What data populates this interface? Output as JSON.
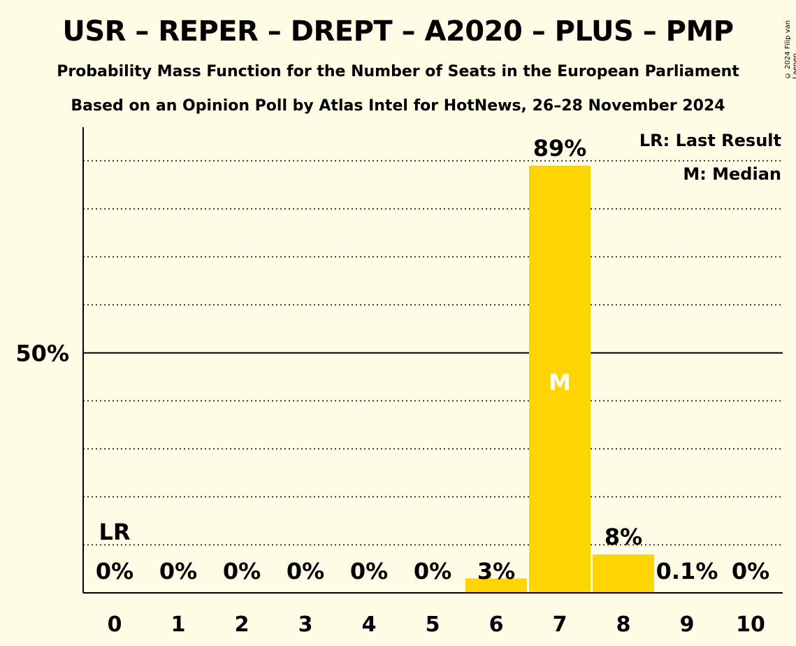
{
  "header": {
    "title": "USR – REPER – DREPT – A2020 – PLUS – PMP",
    "subtitle": "Probability Mass Function for the Number of Seats in the European Parliament",
    "source": "Based on an Opinion Poll by Atlas Intel for HotNews, 26–28 November 2024",
    "copyright": "© 2024 Filip van Laenen"
  },
  "legend": {
    "last_result": "LR: Last Result",
    "median": "M: Median"
  },
  "colors": {
    "bar": "#FDD500",
    "background": "#FFFCE5"
  },
  "chart_data": {
    "type": "bar",
    "title": "USR – REPER – DREPT – A2020 – PLUS – PMP",
    "categories": [
      "0",
      "1",
      "2",
      "3",
      "4",
      "5",
      "6",
      "7",
      "8",
      "9",
      "10"
    ],
    "values": [
      0,
      0,
      0,
      0,
      0,
      0,
      3,
      89,
      8,
      0.1,
      0
    ],
    "value_labels": [
      "0%",
      "0%",
      "0%",
      "0%",
      "0%",
      "0%",
      "3%",
      "89%",
      "8%",
      "0.1%",
      "0%"
    ],
    "ylim": [
      0,
      97
    ],
    "yticks": [
      50
    ],
    "ytick_labels": [
      "50%"
    ],
    "minor_grid_step": 10,
    "grid": true,
    "legend_position": "top-right",
    "last_result": {
      "category": "0",
      "label": "LR"
    },
    "median": {
      "category": "7",
      "label": "M"
    }
  }
}
